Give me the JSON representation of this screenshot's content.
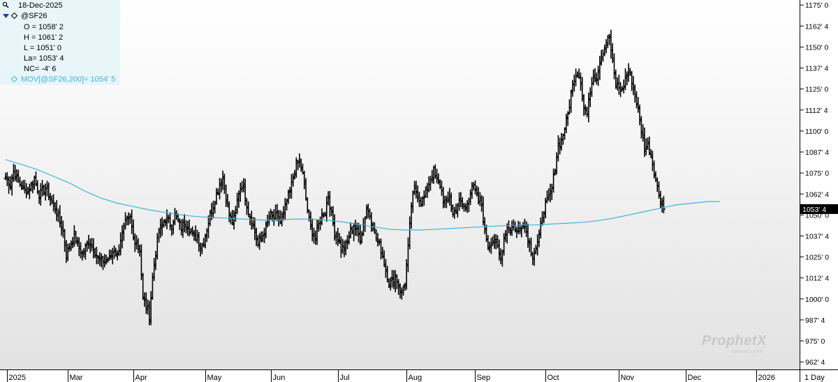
{
  "info": {
    "date": "18-Dec-2025",
    "symbol": "@SF26",
    "open": "O = 1058' 2",
    "high": "H = 1061' 2",
    "low": "L = 1051' 0",
    "last": "La= 1053' 4",
    "net_change": "NC= -4' 6",
    "moving_average": "MOV[@SF26,200]= 1054' 5"
  },
  "watermark": {
    "brand": "ProphetX",
    "powered": "powered by DTN"
  },
  "colors": {
    "bars": "#000000",
    "moving_average": "#3fb4dc",
    "price_box": "#000000"
  },
  "chart_data": {
    "type": "ohlc_bar",
    "symbol": "@SF26",
    "timeframe": "1 Day",
    "y_axis": {
      "labels": [
        "1175' 0",
        "1162' 4",
        "1150' 0",
        "1137' 4",
        "1125' 0",
        "1112' 4",
        "1100' 0",
        "1087' 4",
        "1075' 0",
        "1062' 4",
        "1050' 0",
        "1037' 4",
        "1025' 0",
        "1012' 4",
        "1000' 0",
        "987' 4",
        "975' 0",
        "962' 4"
      ],
      "values": [
        1175,
        1162.5,
        1150,
        1137.5,
        1125,
        1112.5,
        1100,
        1087.5,
        1075,
        1062.5,
        1050,
        1037.5,
        1025,
        1012.5,
        1000,
        987.5,
        975,
        962.5
      ],
      "range": [
        958,
        1178
      ]
    },
    "x_axis": {
      "labels": [
        "2025",
        "Mar",
        "Apr",
        "May",
        "Jun",
        "Jul",
        "Aug",
        "Sep",
        "Oct",
        "Nov",
        "Dec",
        "2026"
      ],
      "positions": [
        1,
        39,
        80,
        125,
        166,
        208,
        251,
        294,
        338,
        384,
        426,
        470
      ],
      "range": [
        0,
        508
      ]
    },
    "last_price_label": "1053' 4",
    "last_price": 1053.5,
    "moving_average_200": [
      [
        0,
        1083
      ],
      [
        10,
        1080
      ],
      [
        20,
        1077
      ],
      [
        30,
        1073
      ],
      [
        40,
        1069
      ],
      [
        50,
        1064
      ],
      [
        60,
        1060
      ],
      [
        70,
        1057
      ],
      [
        80,
        1055
      ],
      [
        90,
        1053
      ],
      [
        100,
        1051.5
      ],
      [
        110,
        1050
      ],
      [
        120,
        1049
      ],
      [
        130,
        1048.5
      ],
      [
        140,
        1048
      ],
      [
        150,
        1047.5
      ],
      [
        160,
        1047
      ],
      [
        170,
        1047
      ],
      [
        180,
        1047.5
      ],
      [
        190,
        1047.5
      ],
      [
        200,
        1047
      ],
      [
        210,
        1046
      ],
      [
        220,
        1044.5
      ],
      [
        230,
        1043
      ],
      [
        240,
        1041.5
      ],
      [
        250,
        1041
      ],
      [
        260,
        1041
      ],
      [
        270,
        1041.5
      ],
      [
        280,
        1042
      ],
      [
        290,
        1042.5
      ],
      [
        300,
        1043
      ],
      [
        310,
        1043.5
      ],
      [
        320,
        1044
      ],
      [
        330,
        1044
      ],
      [
        340,
        1044.5
      ],
      [
        350,
        1045
      ],
      [
        360,
        1045.5
      ],
      [
        370,
        1046.5
      ],
      [
        380,
        1048
      ],
      [
        390,
        1050
      ],
      [
        400,
        1052
      ],
      [
        410,
        1054
      ],
      [
        420,
        1056
      ],
      [
        430,
        1057
      ],
      [
        440,
        1058
      ],
      [
        447,
        1058
      ]
    ],
    "anchors": [
      [
        0,
        1072
      ],
      [
        3,
        1068
      ],
      [
        5,
        1076
      ],
      [
        8,
        1070
      ],
      [
        12,
        1064
      ],
      [
        15,
        1066
      ],
      [
        18,
        1072
      ],
      [
        21,
        1062
      ],
      [
        25,
        1066
      ],
      [
        28,
        1060
      ],
      [
        32,
        1052
      ],
      [
        36,
        1040
      ],
      [
        38,
        1026
      ],
      [
        40,
        1032
      ],
      [
        43,
        1038
      ],
      [
        46,
        1030
      ],
      [
        48,
        1027
      ],
      [
        52,
        1034
      ],
      [
        55,
        1030
      ],
      [
        58,
        1024
      ],
      [
        62,
        1022
      ],
      [
        65,
        1024
      ],
      [
        68,
        1030
      ],
      [
        70,
        1026
      ],
      [
        72,
        1036
      ],
      [
        75,
        1045
      ],
      [
        78,
        1048
      ],
      [
        80,
        1036
      ],
      [
        82,
        1034
      ],
      [
        84,
        1030
      ],
      [
        86,
        1000
      ],
      [
        88,
        996
      ],
      [
        90,
        990
      ],
      [
        92,
        1012
      ],
      [
        94,
        1028
      ],
      [
        96,
        1040
      ],
      [
        98,
        1044
      ],
      [
        100,
        1048
      ],
      [
        102,
        1046
      ],
      [
        104,
        1044
      ],
      [
        106,
        1050
      ],
      [
        108,
        1046
      ],
      [
        110,
        1042
      ],
      [
        112,
        1046
      ],
      [
        114,
        1044
      ],
      [
        116,
        1040
      ],
      [
        118,
        1036
      ],
      [
        120,
        1038
      ],
      [
        122,
        1030
      ],
      [
        124,
        1034
      ],
      [
        126,
        1042
      ],
      [
        128,
        1050
      ],
      [
        130,
        1056
      ],
      [
        132,
        1062
      ],
      [
        134,
        1068
      ],
      [
        136,
        1072
      ],
      [
        138,
        1060
      ],
      [
        140,
        1050
      ],
      [
        142,
        1046
      ],
      [
        144,
        1052
      ],
      [
        146,
        1064
      ],
      [
        148,
        1068
      ],
      [
        150,
        1062
      ],
      [
        152,
        1052
      ],
      [
        154,
        1046
      ],
      [
        156,
        1040
      ],
      [
        158,
        1032
      ],
      [
        160,
        1036
      ],
      [
        162,
        1040
      ],
      [
        164,
        1046
      ],
      [
        166,
        1050
      ],
      [
        168,
        1048
      ],
      [
        170,
        1050
      ],
      [
        172,
        1046
      ],
      [
        174,
        1050
      ],
      [
        176,
        1058
      ],
      [
        178,
        1064
      ],
      [
        180,
        1072
      ],
      [
        182,
        1080
      ],
      [
        184,
        1082
      ],
      [
        186,
        1074
      ],
      [
        188,
        1060
      ],
      [
        190,
        1046
      ],
      [
        192,
        1040
      ],
      [
        194,
        1036
      ],
      [
        196,
        1044
      ],
      [
        198,
        1050
      ],
      [
        200,
        1052
      ],
      [
        202,
        1062
      ],
      [
        204,
        1050
      ],
      [
        206,
        1040
      ],
      [
        208,
        1036
      ],
      [
        210,
        1030
      ],
      [
        212,
        1030
      ],
      [
        214,
        1034
      ],
      [
        216,
        1040
      ],
      [
        218,
        1044
      ],
      [
        220,
        1040
      ],
      [
        222,
        1036
      ],
      [
        224,
        1044
      ],
      [
        226,
        1054
      ],
      [
        228,
        1050
      ],
      [
        230,
        1044
      ],
      [
        232,
        1036
      ],
      [
        234,
        1032
      ],
      [
        236,
        1026
      ],
      [
        238,
        1018
      ],
      [
        240,
        1010
      ],
      [
        242,
        1010
      ],
      [
        244,
        1014
      ],
      [
        246,
        1008
      ],
      [
        248,
        1004
      ],
      [
        250,
        1010
      ],
      [
        252,
        1030
      ],
      [
        254,
        1056
      ],
      [
        256,
        1066
      ],
      [
        258,
        1062
      ],
      [
        260,
        1058
      ],
      [
        262,
        1060
      ],
      [
        264,
        1066
      ],
      [
        266,
        1072
      ],
      [
        268,
        1076
      ],
      [
        270,
        1070
      ],
      [
        272,
        1068
      ],
      [
        274,
        1060
      ],
      [
        276,
        1056
      ],
      [
        278,
        1062
      ],
      [
        280,
        1050
      ],
      [
        282,
        1054
      ],
      [
        284,
        1058
      ],
      [
        286,
        1056
      ],
      [
        288,
        1054
      ],
      [
        290,
        1060
      ],
      [
        292,
        1068
      ],
      [
        294,
        1064
      ],
      [
        296,
        1058
      ],
      [
        298,
        1056
      ],
      [
        300,
        1040
      ],
      [
        302,
        1032
      ],
      [
        304,
        1034
      ],
      [
        306,
        1036
      ],
      [
        308,
        1030
      ],
      [
        310,
        1024
      ],
      [
        312,
        1036
      ],
      [
        314,
        1044
      ],
      [
        316,
        1042
      ],
      [
        318,
        1044
      ],
      [
        320,
        1040
      ],
      [
        322,
        1042
      ],
      [
        324,
        1046
      ],
      [
        326,
        1040
      ],
      [
        328,
        1032
      ],
      [
        330,
        1026
      ],
      [
        332,
        1030
      ],
      [
        334,
        1036
      ],
      [
        336,
        1050
      ],
      [
        338,
        1056
      ],
      [
        340,
        1060
      ],
      [
        342,
        1066
      ],
      [
        344,
        1078
      ],
      [
        346,
        1092
      ],
      [
        348,
        1094
      ],
      [
        350,
        1102
      ],
      [
        352,
        1110
      ],
      [
        354,
        1122
      ],
      [
        356,
        1132
      ],
      [
        358,
        1136
      ],
      [
        360,
        1130
      ],
      [
        362,
        1114
      ],
      [
        364,
        1110
      ],
      [
        366,
        1124
      ],
      [
        368,
        1134
      ],
      [
        370,
        1132
      ],
      [
        372,
        1142
      ],
      [
        374,
        1148
      ],
      [
        376,
        1152
      ],
      [
        378,
        1156
      ],
      [
        380,
        1140
      ],
      [
        382,
        1128
      ],
      [
        384,
        1126
      ],
      [
        386,
        1124
      ],
      [
        388,
        1132
      ],
      [
        390,
        1136
      ],
      [
        392,
        1130
      ],
      [
        394,
        1122
      ],
      [
        396,
        1112
      ],
      [
        398,
        1100
      ],
      [
        400,
        1090
      ],
      [
        402,
        1092
      ],
      [
        404,
        1086
      ],
      [
        406,
        1076
      ],
      [
        408,
        1066
      ],
      [
        410,
        1060
      ],
      [
        412,
        1053
      ]
    ]
  },
  "axis_title": "1 Day"
}
